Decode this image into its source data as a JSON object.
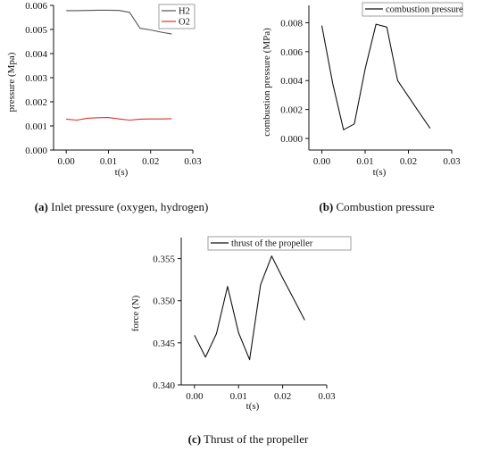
{
  "chart_data": [
    {
      "type": "line",
      "caption_letter": "(a)",
      "caption_text": " Inlet pressure (oxygen, hydrogen)",
      "xlabel": "t(s)",
      "ylabel": "pressure (Mpa)",
      "xlim": [
        -0.003,
        0.03
      ],
      "ylim": [
        0,
        0.006
      ],
      "xticks": [
        0.0,
        0.01,
        0.02,
        0.03
      ],
      "xtick_labels": [
        "0.00",
        "0.01",
        "0.02",
        "0.03"
      ],
      "yticks": [
        0,
        0.001,
        0.002,
        0.003,
        0.004,
        0.005,
        0.006
      ],
      "ytick_labels": [
        "0.000",
        "0.001",
        "0.002",
        "0.003",
        "0.004",
        "0.005",
        "0.006"
      ],
      "legend": "top-right",
      "grid": false,
      "series": [
        {
          "name": "H2",
          "color": "#555555",
          "x": [
            0.0,
            0.0025,
            0.005,
            0.0075,
            0.01,
            0.0125,
            0.015,
            0.0175,
            0.02,
            0.0225,
            0.025
          ],
          "y": [
            0.00578,
            0.00578,
            0.00579,
            0.0058,
            0.0058,
            0.00579,
            0.00571,
            0.00505,
            0.00498,
            0.00489,
            0.00481
          ]
        },
        {
          "name": "O2",
          "color": "#e03030",
          "x": [
            0.0,
            0.0025,
            0.005,
            0.0075,
            0.01,
            0.0125,
            0.015,
            0.0175,
            0.02,
            0.0225,
            0.025
          ],
          "y": [
            0.00128,
            0.00124,
            0.00132,
            0.00134,
            0.00135,
            0.00129,
            0.00124,
            0.00128,
            0.00129,
            0.00129,
            0.0013
          ]
        }
      ]
    },
    {
      "type": "line",
      "caption_letter": "(b)",
      "caption_text": " Combustion pressure",
      "xlabel": "t(s)",
      "ylabel": "combustion pressure (MPa)",
      "xlim": [
        -0.003,
        0.03
      ],
      "ylim": [
        -0.0008,
        0.0092
      ],
      "xticks": [
        0.0,
        0.01,
        0.02,
        0.03
      ],
      "xtick_labels": [
        "0.00",
        "0.01",
        "0.02",
        "0.03"
      ],
      "yticks": [
        0.0,
        0.002,
        0.004,
        0.006,
        0.008
      ],
      "ytick_labels": [
        "0.000",
        "0.002",
        "0.004",
        "0.006",
        "0.008"
      ],
      "legend": "top-right",
      "grid": false,
      "series": [
        {
          "name": "combustion pressure",
          "color": "#111111",
          "x": [
            0.0,
            0.0025,
            0.005,
            0.0075,
            0.01,
            0.0125,
            0.015,
            0.0175,
            0.02,
            0.0225,
            0.025
          ],
          "y": [
            0.0078,
            0.0038,
            0.0006,
            0.001,
            0.0048,
            0.0079,
            0.0077,
            0.004,
            0.0029,
            0.0018,
            0.0007
          ]
        }
      ]
    },
    {
      "type": "line",
      "caption_letter": "(c)",
      "caption_text": " Thrust of the propeller",
      "xlabel": "t(s)",
      "ylabel": "force (N)",
      "xlim": [
        -0.003,
        0.03
      ],
      "ylim": [
        0.34,
        0.3575
      ],
      "xticks": [
        0.0,
        0.01,
        0.02,
        0.03
      ],
      "xtick_labels": [
        "0.00",
        "0.01",
        "0.02",
        "0.03"
      ],
      "yticks": [
        0.34,
        0.345,
        0.35,
        0.355
      ],
      "ytick_labels": [
        "0.340",
        "0.345",
        "0.350",
        "0.355"
      ],
      "legend": "top-left",
      "grid": false,
      "series": [
        {
          "name": "thrust of the propeller",
          "color": "#111111",
          "x": [
            0.0,
            0.0025,
            0.005,
            0.0075,
            0.01,
            0.0125,
            0.015,
            0.0175,
            0.02,
            0.0225,
            0.025
          ],
          "y": [
            0.3459,
            0.3433,
            0.3461,
            0.3517,
            0.3462,
            0.343,
            0.3519,
            0.3553,
            0.3527,
            0.3502,
            0.3477
          ]
        }
      ]
    }
  ]
}
